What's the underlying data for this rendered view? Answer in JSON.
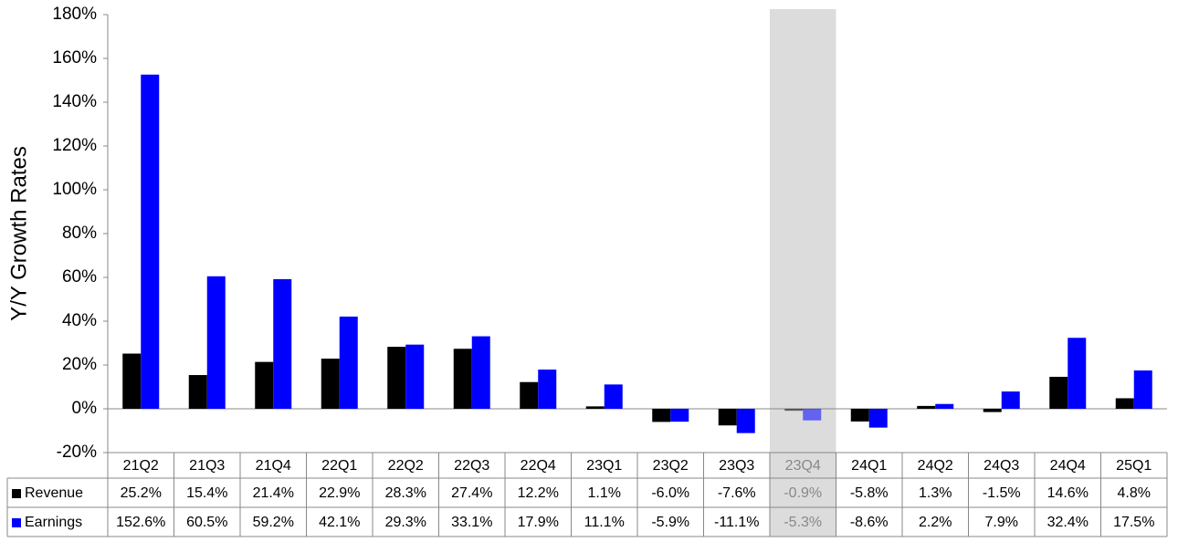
{
  "chart_data": {
    "type": "bar",
    "y_label": "Y/Y Growth Rates",
    "categories": [
      "21Q2",
      "21Q3",
      "21Q4",
      "22Q1",
      "22Q2",
      "22Q3",
      "22Q4",
      "23Q1",
      "23Q2",
      "23Q3",
      "23Q4",
      "24Q1",
      "24Q2",
      "24Q3",
      "24Q4",
      "25Q1"
    ],
    "series": [
      {
        "name": "Revenue",
        "color": "#000000",
        "values": [
          25.2,
          15.4,
          21.4,
          22.9,
          28.3,
          27.4,
          12.2,
          1.1,
          -6.0,
          -7.6,
          -0.9,
          -5.8,
          1.3,
          -1.5,
          14.6,
          4.8
        ],
        "value_labels": [
          "25.2%",
          "15.4%",
          "21.4%",
          "22.9%",
          "28.3%",
          "27.4%",
          "12.2%",
          "1.1%",
          "-6.0%",
          "-7.6%",
          "-0.9%",
          "-5.8%",
          "1.3%",
          "-1.5%",
          "14.6%",
          "4.8%"
        ]
      },
      {
        "name": "Earnings",
        "color": "#0000ff",
        "values": [
          152.6,
          60.5,
          59.2,
          42.1,
          29.3,
          33.1,
          17.9,
          11.1,
          -5.9,
          -11.1,
          -5.3,
          -8.6,
          2.2,
          7.9,
          32.4,
          17.5
        ],
        "value_labels": [
          "152.6%",
          "60.5%",
          "59.2%",
          "42.1%",
          "29.3%",
          "33.1%",
          "17.9%",
          "11.1%",
          "-5.9%",
          "-11.1%",
          "-5.3%",
          "-8.6%",
          "2.2%",
          "7.9%",
          "32.4%",
          "17.5%"
        ]
      }
    ],
    "highlight": "23Q4",
    "ylim": [
      -20,
      180
    ],
    "yticks": [
      {
        "value": -20,
        "label": "-20%"
      },
      {
        "value": 0,
        "label": "0%"
      },
      {
        "value": 20,
        "label": "20%"
      },
      {
        "value": 40,
        "label": "40%"
      },
      {
        "value": 60,
        "label": "60%"
      },
      {
        "value": 80,
        "label": "80%"
      },
      {
        "value": 100,
        "label": "100%"
      },
      {
        "value": 120,
        "label": "120%"
      },
      {
        "value": 140,
        "label": "140%"
      },
      {
        "value": 160,
        "label": "160%"
      },
      {
        "value": 180,
        "label": "180%"
      }
    ]
  }
}
